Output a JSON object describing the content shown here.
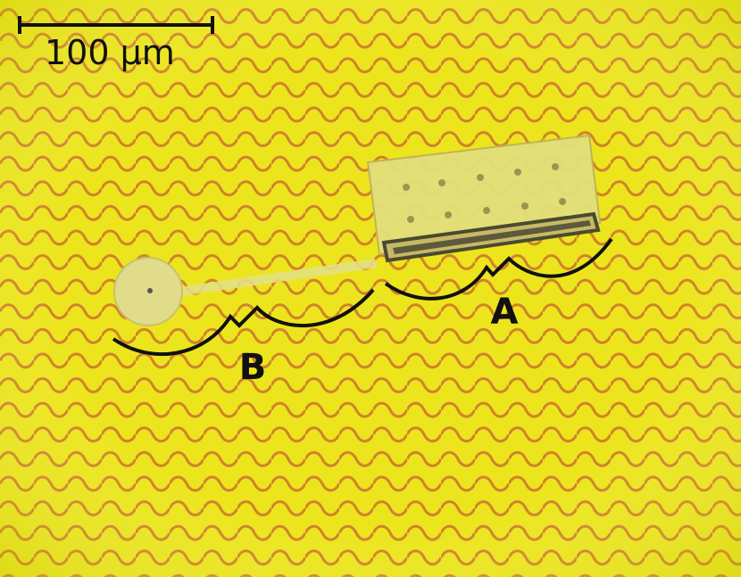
{
  "scale_bar": {
    "label": "100 μm"
  },
  "labels": {
    "a": "A",
    "b": "B"
  }
}
